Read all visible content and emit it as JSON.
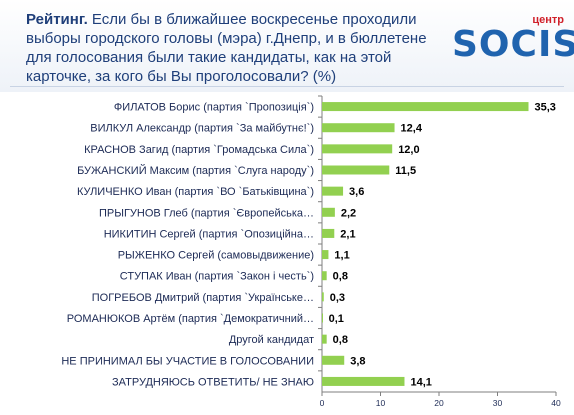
{
  "header": {
    "title_bold": "Рейтинг.",
    "title_rest": " Если бы в ближайшее воскресенье проходили выборы городского головы (мэра) г.Днепр, и в бюллетене для голосования были такие кандидаты, как на этой карточке, за кого бы Вы проголосовали?  (%)",
    "logo_small": "центр",
    "logo_main": "SOCIS"
  },
  "chart_data": {
    "type": "bar",
    "orientation": "horizontal",
    "categories": [
      "ФИЛАТОВ Борис (партия `Пропозиція`)",
      "ВИЛКУЛ Александр (партия `За майбутнє!`)",
      "КРАСНОВ Загид (партия `Громадська Сила`)",
      "БУЖАНСКИЙ Максим (партия `Слуга народу`)",
      "КУЛИЧЕНКО Иван (партия `ВО `Батьківщина`)",
      "ПРЫГУНОВ Глеб (партия `Європейська…",
      "НИКИТИН Сергей (партия `Опозиційна…",
      "РЫЖЕНКО Сергей (самовыдвижение)",
      "СТУПАК Иван (партия `Закон і честь`)",
      "ПОГРЕБОВ Дмитрий (партия `Українське…",
      "РОМАНЮКОВ Артём (партия `Демократичний…",
      "Другой кандидат",
      "НЕ ПРИНИМАЛ БЫ УЧАСТИЕ В ГОЛОСОВАНИИ",
      "ЗАТРУДНЯЮСЬ ОТВЕТИТЬ/ НЕ ЗНАЮ"
    ],
    "values": [
      35.3,
      12.4,
      12.0,
      11.5,
      3.6,
      2.2,
      2.1,
      1.1,
      0.8,
      0.3,
      0.1,
      0.8,
      3.8,
      14.1
    ],
    "value_labels": [
      "35,3",
      "12,4",
      "12,0",
      "11,5",
      "3,6",
      "2,2",
      "2,1",
      "1,1",
      "0,8",
      "0,3",
      "0,1",
      "0,8",
      "3,8",
      "14,1"
    ],
    "xlim": [
      0,
      40
    ],
    "x_ticks": [
      0,
      10,
      20,
      30,
      40
    ],
    "bar_color": "#92d050",
    "grid": false,
    "legend": "none"
  }
}
